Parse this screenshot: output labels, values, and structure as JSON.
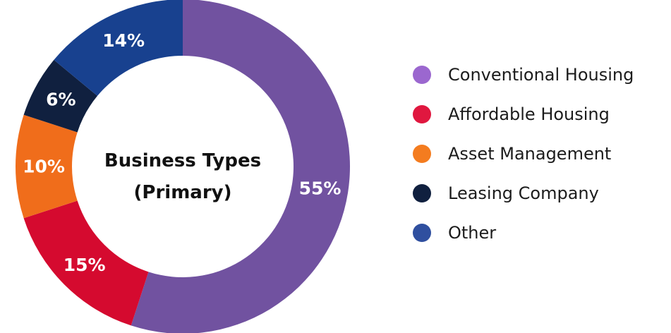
{
  "chart_data": {
    "type": "pie",
    "title_lines": [
      "Business Types",
      "(Primary)"
    ],
    "categories": [
      "Conventional Housing",
      "Affordable Housing",
      "Asset Management",
      "Leasing Company",
      "Other"
    ],
    "values": [
      55,
      15,
      10,
      6,
      14
    ],
    "labels": [
      "55%",
      "15%",
      "10%",
      "6%",
      "14%"
    ],
    "colors": [
      "#7152a0",
      "#d50a2f",
      "#f06d1b",
      "#10203f",
      "#18418f"
    ],
    "legend_colors": [
      "#9b67cf",
      "#e0173f",
      "#f47c1f",
      "#10203f",
      "#2f4f9f"
    ],
    "legend_position": "right",
    "donut": true
  }
}
